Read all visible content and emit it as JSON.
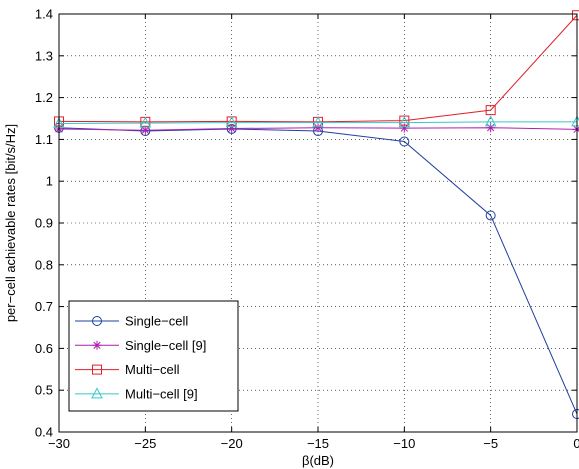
{
  "chart_data": {
    "type": "line",
    "title": "",
    "xlabel": "β(dB)",
    "ylabel": "per−cell achievable rates [bit/s/Hz]",
    "xlim": [
      -30,
      0
    ],
    "ylim": [
      0.4,
      1.4
    ],
    "x_ticks": [
      -30,
      -25,
      -20,
      -15,
      -10,
      -5,
      0
    ],
    "x_tick_labels": [
      "−30",
      "−25",
      "−20",
      "−15",
      "−10",
      "−5",
      "0"
    ],
    "y_ticks": [
      0.4,
      0.5,
      0.6,
      0.7,
      0.8,
      0.9,
      1.0,
      1.1,
      1.2,
      1.3,
      1.4
    ],
    "y_tick_labels": [
      "0.4",
      "0.5",
      "0.6",
      "0.7",
      "0.8",
      "0.9",
      "1",
      "1.1",
      "1.2",
      "1.3",
      "1.4"
    ],
    "grid": true,
    "legend_position": "bottom-left",
    "x": [
      -30,
      -25,
      -20,
      -15,
      -10,
      -5,
      0
    ],
    "series": [
      {
        "name": "Single−cell",
        "color": "#1f3f9f",
        "marker": "circle",
        "values": [
          1.128,
          1.12,
          1.125,
          1.12,
          1.095,
          0.918,
          0.443
        ]
      },
      {
        "name": "Single−cell [9]",
        "color": "#b01fb0",
        "marker": "star",
        "values": [
          1.125,
          1.122,
          1.126,
          1.128,
          1.127,
          1.128,
          1.124
        ]
      },
      {
        "name": "Multi−cell",
        "color": "#e0202a",
        "marker": "square",
        "values": [
          1.143,
          1.142,
          1.143,
          1.142,
          1.145,
          1.17,
          1.397
        ]
      },
      {
        "name": "Multi−cell [9]",
        "color": "#38c8c8",
        "marker": "triangle",
        "values": [
          1.138,
          1.139,
          1.14,
          1.14,
          1.14,
          1.142,
          1.142
        ]
      }
    ]
  }
}
